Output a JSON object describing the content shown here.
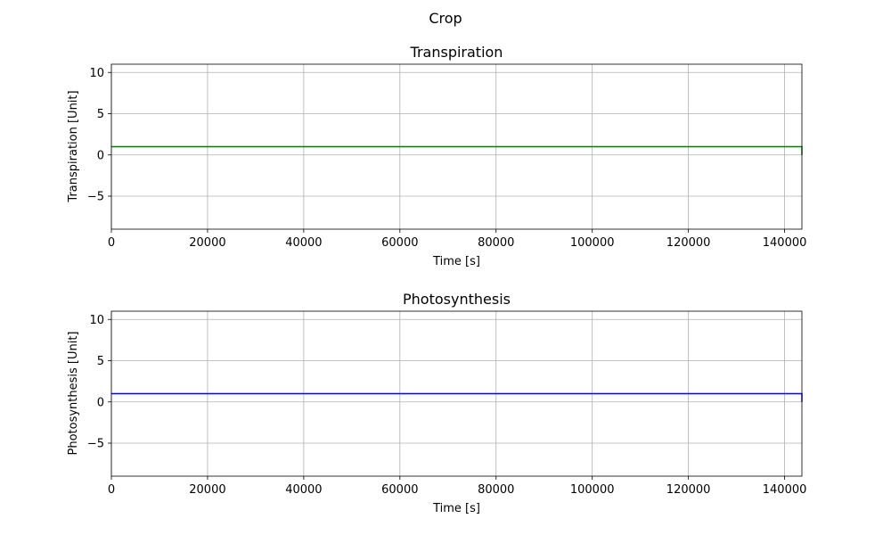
{
  "figure": {
    "suptitle": "Crop"
  },
  "chart_data": [
    {
      "type": "line",
      "title": "Transpiration",
      "xlabel": "Time [s]",
      "ylabel": "Transpiration [Unit]",
      "xlim": [
        0,
        143600
      ],
      "ylim": [
        -9,
        11
      ],
      "xticks": [
        0,
        20000,
        40000,
        60000,
        80000,
        100000,
        120000,
        140000
      ],
      "xtick_labels": [
        "0",
        "20000",
        "40000",
        "60000",
        "80000",
        "100000",
        "120000",
        "140000"
      ],
      "yticks": [
        -5,
        0,
        5,
        10
      ],
      "ytick_labels": [
        "−5",
        "0",
        "5",
        "10"
      ],
      "grid": true,
      "series": [
        {
          "color": "#008000",
          "x": [
            0,
            143600,
            143600
          ],
          "y": [
            1,
            1,
            0
          ]
        }
      ]
    },
    {
      "type": "line",
      "title": "Photosynthesis",
      "xlabel": "Time [s]",
      "ylabel": "Photosynthesis [Unit]",
      "xlim": [
        0,
        143600
      ],
      "ylim": [
        -9,
        11
      ],
      "xticks": [
        0,
        20000,
        40000,
        60000,
        80000,
        100000,
        120000,
        140000
      ],
      "xtick_labels": [
        "0",
        "20000",
        "40000",
        "60000",
        "80000",
        "100000",
        "120000",
        "140000"
      ],
      "yticks": [
        -5,
        0,
        5,
        10
      ],
      "ytick_labels": [
        "−5",
        "0",
        "5",
        "10"
      ],
      "grid": true,
      "series": [
        {
          "color": "#0000ff",
          "x": [
            0,
            143600,
            143600
          ],
          "y": [
            1,
            1,
            0
          ]
        }
      ]
    }
  ]
}
